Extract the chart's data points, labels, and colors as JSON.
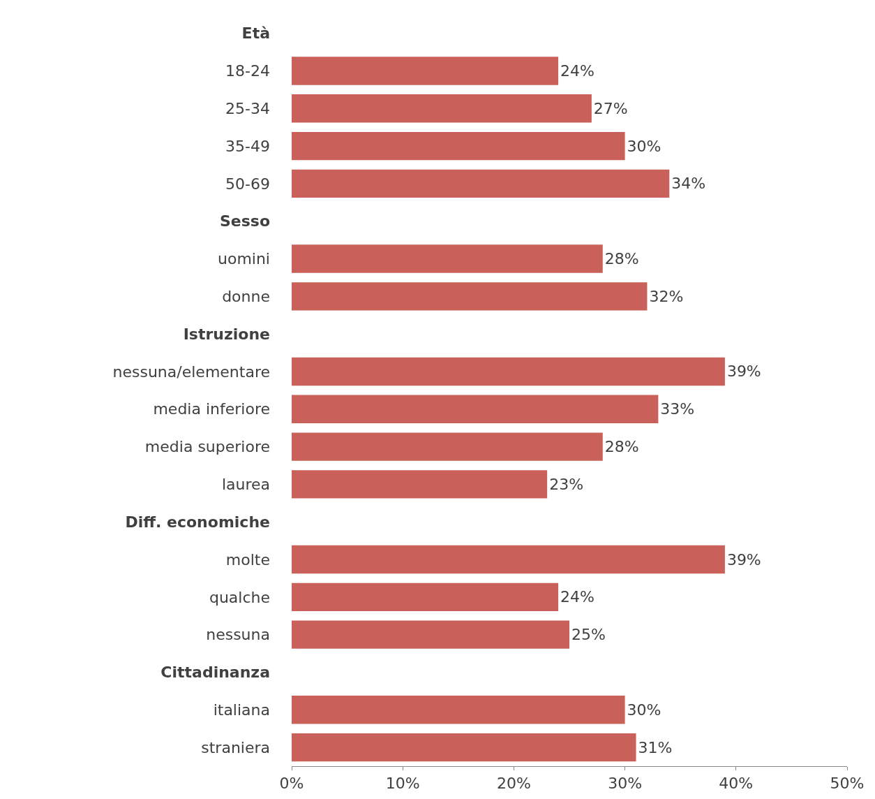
{
  "chart_data": {
    "type": "bar",
    "orientation": "horizontal",
    "categories": [
      "Età",
      "18-24",
      "25-34",
      "35-49",
      "50-69",
      "Sesso",
      "uomini",
      "donne",
      "Istruzione",
      "nessuna/elementare",
      "media inferiore",
      "media superiore",
      "laurea",
      "Diff. economiche",
      "molte",
      "qualche",
      "nessuna",
      "Cittadinanza",
      "italiana",
      "straniera"
    ],
    "values": [
      null,
      24,
      27,
      30,
      34,
      null,
      28,
      32,
      null,
      39,
      33,
      28,
      23,
      null,
      39,
      24,
      25,
      null,
      30,
      31
    ],
    "value_labels": [
      null,
      "24%",
      "27%",
      "30%",
      "34%",
      null,
      "28%",
      "32%",
      null,
      "39%",
      "33%",
      "28%",
      "23%",
      null,
      "39%",
      "24%",
      "25%",
      null,
      "30%",
      "31%"
    ],
    "color": "#c9605a",
    "xlim": [
      0,
      50
    ],
    "xticks": [
      {
        "value": 0,
        "label": "0%"
      },
      {
        "value": 10,
        "label": "10%"
      },
      {
        "value": 20,
        "label": "20%"
      },
      {
        "value": 30,
        "label": "30%"
      },
      {
        "value": 40,
        "label": "40%"
      },
      {
        "value": 50,
        "label": "50%"
      }
    ],
    "legend": false
  }
}
